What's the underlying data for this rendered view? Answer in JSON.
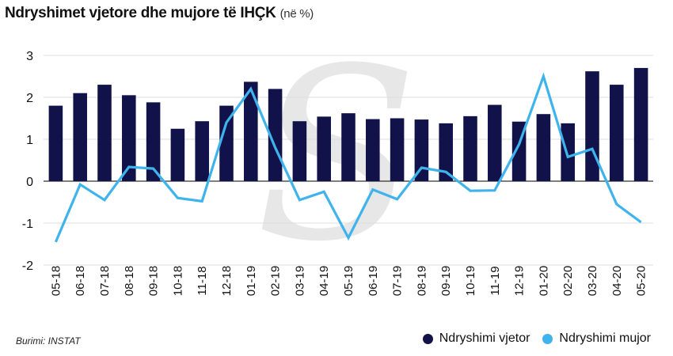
{
  "title": "Ndryshimet vjetore dhe mujore të IHÇK",
  "title_unit": "(në %)",
  "source": "Burimi: INSTAT",
  "colors": {
    "bar": "#12124a",
    "line": "#3fb3ec",
    "grid": "#dcdcdc",
    "zero": "#333333",
    "watermark": "#e7e7e7"
  },
  "chart_data": {
    "type": "bar",
    "categories": [
      "05-18",
      "06-18",
      "07-18",
      "08-18",
      "09-18",
      "10-18",
      "11-18",
      "12-18",
      "01-19",
      "02-19",
      "03-19",
      "04-19",
      "05-19",
      "06-19",
      "07-19",
      "08-19",
      "09-19",
      "10-19",
      "11-19",
      "12-19",
      "01-20",
      "02-20",
      "03-20",
      "04-20",
      "05-20"
    ],
    "series": [
      {
        "name": "Ndryshimi vjetor",
        "type": "bar",
        "color": "#12124a",
        "values": [
          1.8,
          2.1,
          2.3,
          2.05,
          1.88,
          1.25,
          1.43,
          1.8,
          2.37,
          2.2,
          1.43,
          1.54,
          1.62,
          1.48,
          1.5,
          1.47,
          1.38,
          1.55,
          1.82,
          1.42,
          1.6,
          1.38,
          2.62,
          2.3,
          2.7
        ]
      },
      {
        "name": "Ndryshimi mujor",
        "type": "line",
        "color": "#3fb3ec",
        "values": [
          -1.45,
          -0.08,
          -0.45,
          0.34,
          0.3,
          -0.4,
          -0.48,
          1.4,
          2.2,
          0.8,
          -0.45,
          -0.25,
          -1.35,
          -0.2,
          -0.43,
          0.32,
          0.22,
          -0.23,
          -0.22,
          0.88,
          2.5,
          0.58,
          0.77,
          -0.55,
          -0.98
        ]
      }
    ],
    "ylim": [
      -2,
      3
    ],
    "yticks": [
      -2,
      -1,
      0,
      1,
      2,
      3
    ],
    "grid": true,
    "legend": "bottom-right"
  }
}
